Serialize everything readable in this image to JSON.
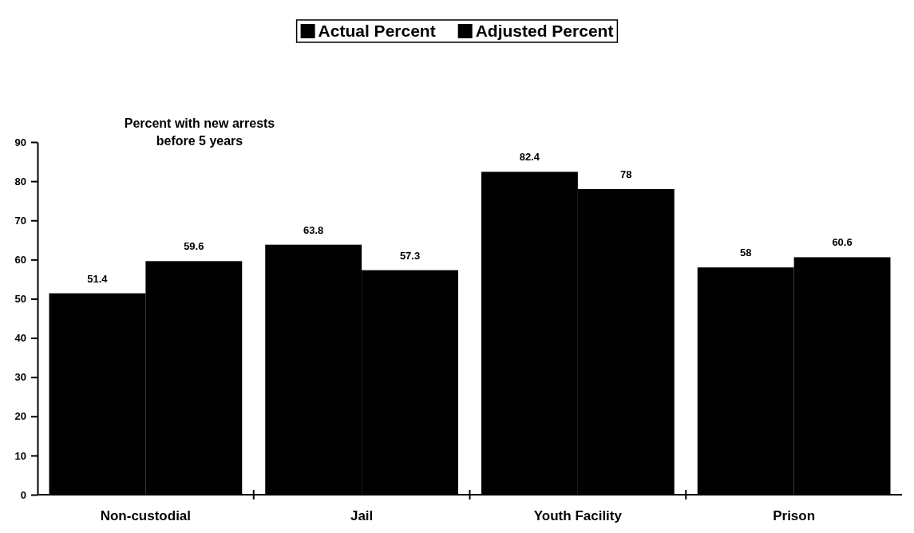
{
  "chart_data": {
    "type": "bar",
    "categories": [
      "Non-custodial",
      "Jail",
      "Youth Facility",
      "Prison"
    ],
    "series": [
      {
        "name": "Actual Percent",
        "color": "#000000",
        "values": [
          51.4,
          63.8,
          82.4,
          58
        ]
      },
      {
        "name": "Adjusted Percent",
        "color": "#000000",
        "values": [
          59.6,
          57.3,
          78,
          60.6
        ]
      }
    ],
    "ylim": [
      0,
      90
    ],
    "yticks": [
      0,
      10,
      20,
      30,
      40,
      50,
      60,
      70,
      80,
      90
    ],
    "data_labels": true,
    "legend": "top",
    "grid": false,
    "annotations": [
      "Percent with new arrests before 5 years"
    ]
  }
}
